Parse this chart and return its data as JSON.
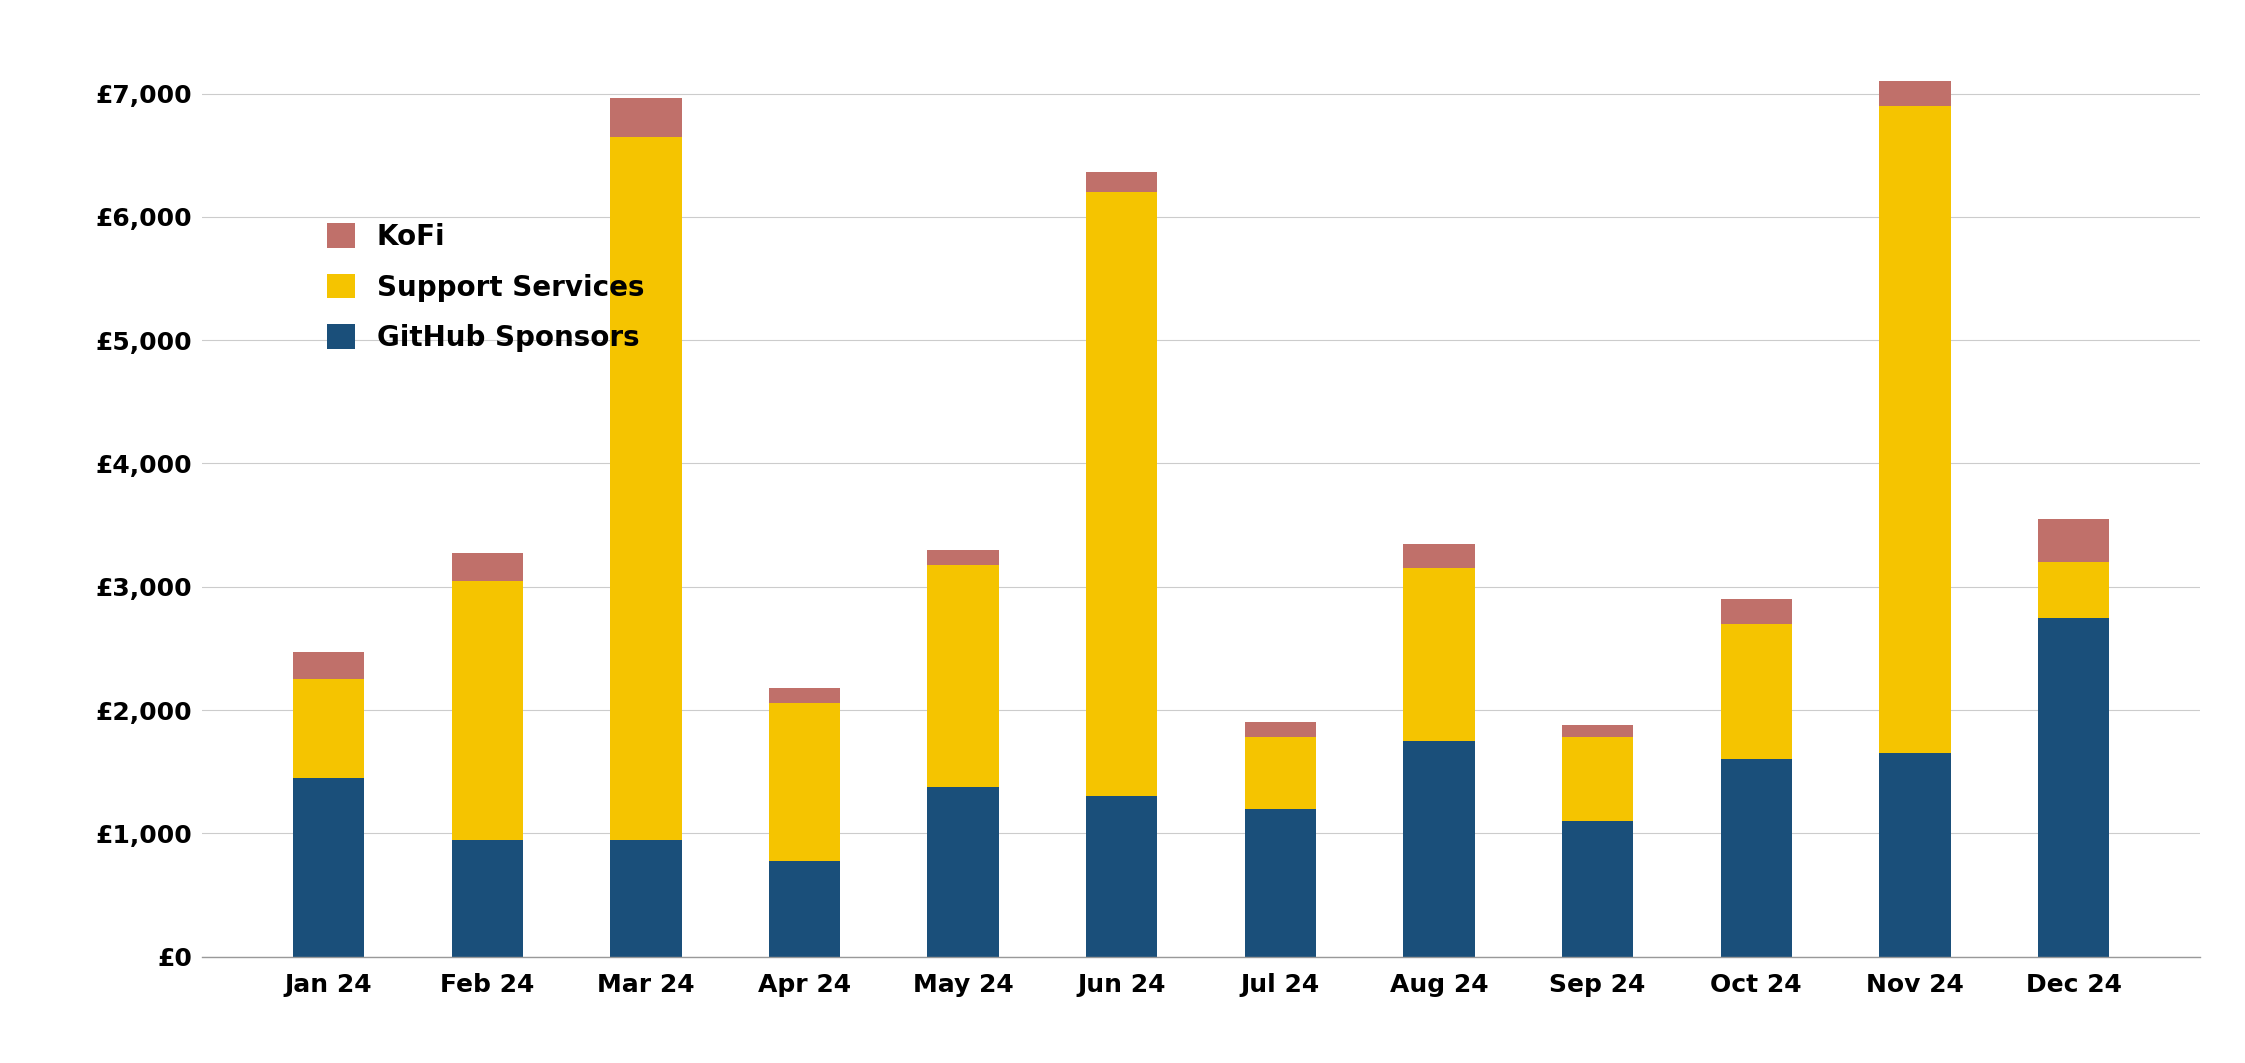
{
  "months": [
    "Jan 24",
    "Feb 24",
    "Mar 24",
    "Apr 24",
    "May 24",
    "Jun 24",
    "Jul 24",
    "Aug 24",
    "Sep 24",
    "Oct 24",
    "Nov 24",
    "Dec 24"
  ],
  "github_sponsors": [
    1450,
    950,
    950,
    780,
    1380,
    1300,
    1200,
    1750,
    1100,
    1600,
    1650,
    2750
  ],
  "support_services": [
    800,
    2100,
    5700,
    1280,
    1800,
    4900,
    580,
    1400,
    680,
    1100,
    5250,
    450
  ],
  "kofi": [
    220,
    220,
    310,
    120,
    120,
    160,
    120,
    200,
    100,
    200,
    200,
    350
  ],
  "color_github": "#1a4f7a",
  "color_support": "#f5c400",
  "color_kofi": "#c0706a",
  "background_color": "#ffffff",
  "grid_color": "#cccccc",
  "ylim": [
    0,
    7500
  ],
  "yticks": [
    0,
    1000,
    2000,
    3000,
    4000,
    5000,
    6000,
    7000
  ],
  "legend_labels": [
    "KoFi",
    "Support Services",
    "GitHub Sponsors"
  ],
  "bar_width": 0.45
}
